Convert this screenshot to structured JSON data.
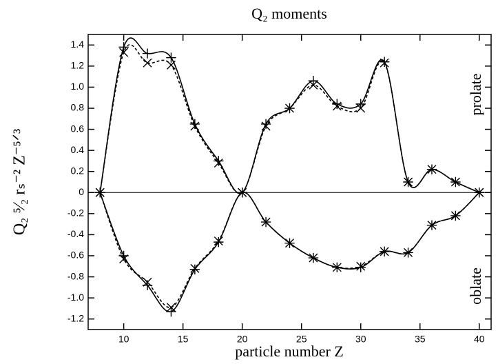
{
  "chart_data": {
    "type": "line",
    "title": "Q₂ moments",
    "x_label": "particle number  Z",
    "y_label": "Q₂ ⁵⁄₂ rₛ⁻² Z⁻⁵ᐟ³",
    "annotations": [
      "prolate",
      "oblate"
    ],
    "x": [
      8,
      10,
      12,
      14,
      16,
      18,
      20,
      22,
      24,
      26,
      28,
      30,
      32,
      34,
      36,
      38,
      40
    ],
    "series": [
      {
        "color": "#000000",
        "dash": "solid",
        "marker": "plus",
        "values": [
          0,
          1.38,
          1.32,
          1.28,
          0.65,
          0.3,
          0,
          0.65,
          0.8,
          1.06,
          0.84,
          0.84,
          1.24,
          0.1,
          0.22,
          0.1,
          0
        ]
      },
      {
        "color": "#000000",
        "dash": "dashed",
        "marker": "cross",
        "values": [
          0,
          1.33,
          1.23,
          1.21,
          0.63,
          0.28,
          0,
          0.63,
          0.8,
          1.02,
          0.82,
          0.8,
          1.23,
          0.1,
          0.22,
          0.1,
          0
        ]
      },
      {
        "color": "#000000",
        "dash": "solid",
        "marker": "plus",
        "values": [
          0,
          -0.6,
          -0.88,
          -1.13,
          -0.73,
          -0.47,
          0,
          -0.28,
          -0.48,
          -0.62,
          -0.71,
          -0.71,
          -0.56,
          -0.57,
          -0.31,
          -0.22,
          0
        ]
      },
      {
        "color": "#000000",
        "dash": "dashed",
        "marker": "cross",
        "values": [
          0,
          -0.63,
          -0.85,
          -1.09,
          -0.72,
          -0.46,
          0,
          -0.28,
          -0.48,
          -0.62,
          -0.71,
          -0.7,
          -0.56,
          -0.57,
          -0.31,
          -0.22,
          0
        ]
      }
    ],
    "xlim": [
      7,
      41
    ],
    "xticks": [
      10,
      15,
      20,
      25,
      30,
      35,
      40
    ],
    "ylim": [
      -1.3,
      1.5
    ],
    "yticks": [
      -1.2,
      {
        "value": -1.0,
        "label": "-1.0"
      },
      -0.8,
      -0.6,
      -0.4,
      -0.2,
      0,
      0.2,
      0.4,
      0.6,
      0.8,
      {
        "value": 1.0,
        "label": "1.0"
      },
      1.2,
      1.4
    ],
    "zero_line": true,
    "grid": false
  }
}
